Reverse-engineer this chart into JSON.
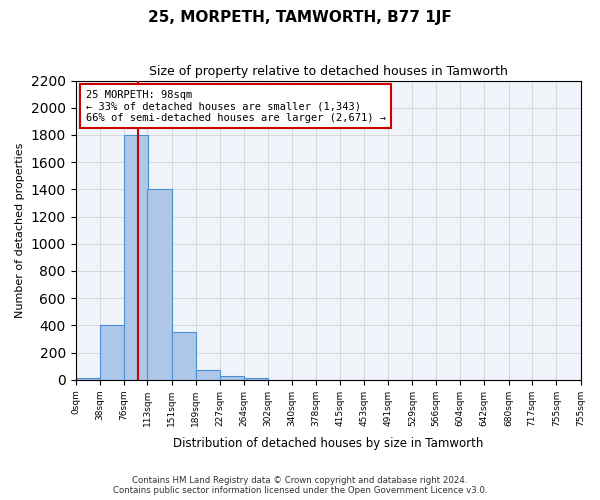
{
  "title": "25, MORPETH, TAMWORTH, B77 1JF",
  "subtitle": "Size of property relative to detached houses in Tamworth",
  "xlabel": "Distribution of detached houses by size in Tamworth",
  "ylabel": "Number of detached properties",
  "bin_labels": [
    "0sqm",
    "38sqm",
    "76sqm",
    "113sqm",
    "151sqm",
    "189sqm",
    "227sqm",
    "264sqm",
    "302sqm",
    "340sqm",
    "378sqm",
    "415sqm",
    "453sqm",
    "491sqm",
    "529sqm",
    "566sqm",
    "604sqm",
    "642sqm",
    "680sqm",
    "717sqm",
    "755sqm"
  ],
  "bin_edges": [
    0,
    38,
    76,
    113,
    151,
    189,
    227,
    264,
    302,
    340,
    378,
    415,
    453,
    491,
    529,
    566,
    604,
    642,
    680,
    717,
    755
  ],
  "bar_values": [
    10,
    400,
    1800,
    1400,
    350,
    75,
    25,
    10,
    0,
    0,
    0,
    0,
    0,
    0,
    0,
    0,
    0,
    0,
    0,
    0
  ],
  "bar_color": "#aec6e8",
  "bar_edge_color": "#4a90d9",
  "property_size": 98,
  "annotation_text": "25 MORPETH: 98sqm\n← 33% of detached houses are smaller (1,343)\n66% of semi-detached houses are larger (2,671) →",
  "annotation_box_color": "#ffffff",
  "annotation_border_color": "#cc0000",
  "vline_color": "#cc0000",
  "ylim": [
    0,
    2200
  ],
  "grid_color": "#cccccc",
  "footer_line1": "Contains HM Land Registry data © Crown copyright and database right 2024.",
  "footer_line2": "Contains public sector information licensed under the Open Government Licence v3.0.",
  "bg_color": "#f0f4fa"
}
